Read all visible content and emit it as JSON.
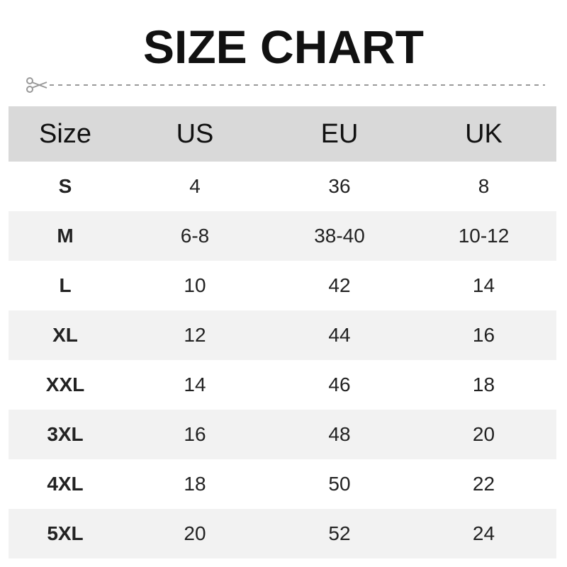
{
  "title": "SIZE CHART",
  "icons": {
    "cut": "scissors-icon"
  },
  "colors": {
    "header_bg": "#d9d9d9",
    "alt_row_bg": "#f2f2f2",
    "cutline": "#999999"
  },
  "table": {
    "headers": [
      "Size",
      "US",
      "EU",
      "UK"
    ],
    "rows": [
      [
        "S",
        "4",
        "36",
        "8"
      ],
      [
        "M",
        "6-8",
        "38-40",
        "10-12"
      ],
      [
        "L",
        "10",
        "42",
        "14"
      ],
      [
        "XL",
        "12",
        "44",
        "16"
      ],
      [
        "XXL",
        "14",
        "46",
        "18"
      ],
      [
        "3XL",
        "16",
        "48",
        "20"
      ],
      [
        "4XL",
        "18",
        "50",
        "22"
      ],
      [
        "5XL",
        "20",
        "52",
        "24"
      ]
    ]
  }
}
